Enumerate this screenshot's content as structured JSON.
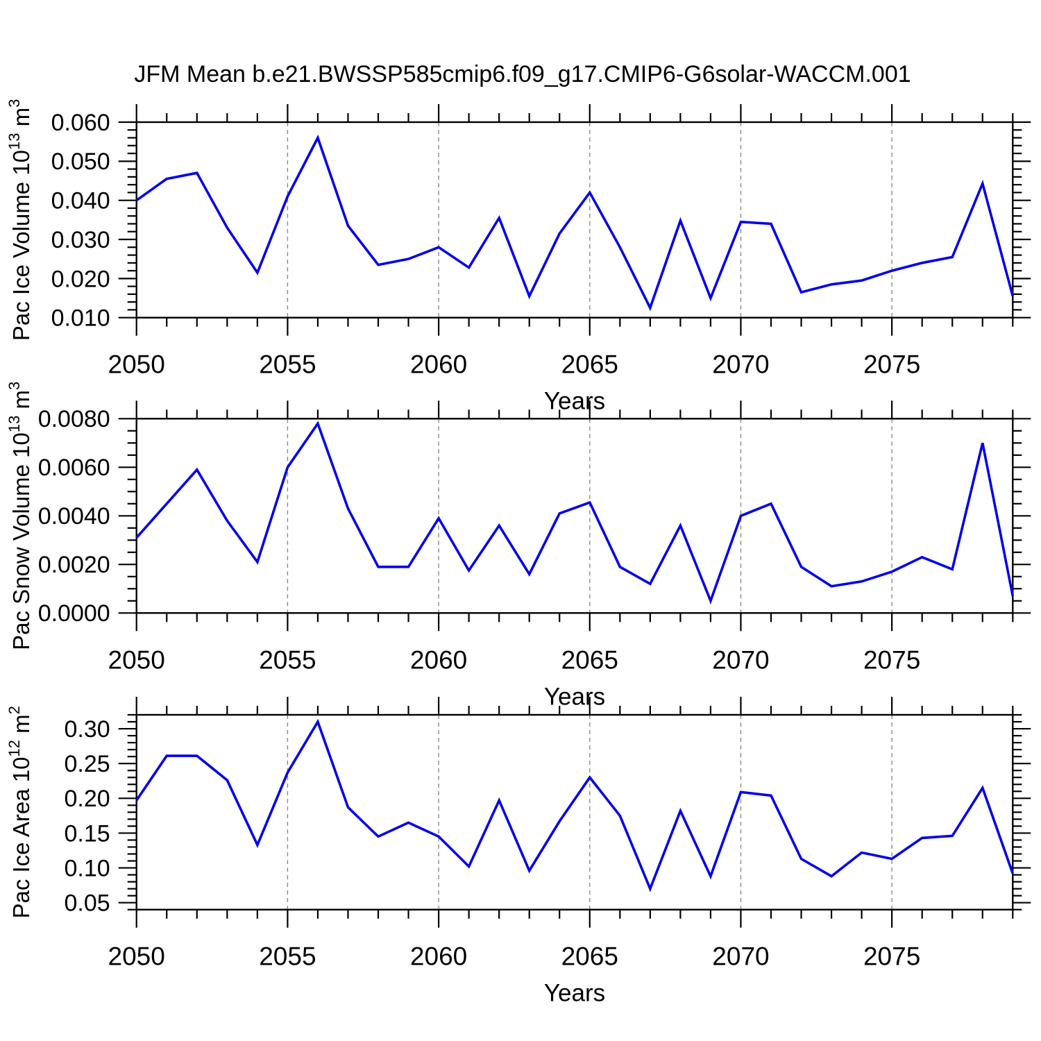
{
  "title": "JFM Mean b.e21.BWSSP585cmip6.f09_g17.CMIP6-G6solar-WACCM.001",
  "colors": {
    "line": "#0000ee",
    "frame": "#000000",
    "grid": "#8a8a8a",
    "background": "#ffffff"
  },
  "years": [
    2050,
    2051,
    2052,
    2053,
    2054,
    2055,
    2056,
    2057,
    2058,
    2059,
    2060,
    2061,
    2062,
    2063,
    2064,
    2065,
    2066,
    2067,
    2068,
    2069,
    2070,
    2071,
    2072,
    2073,
    2074,
    2075,
    2076,
    2077,
    2078,
    2079
  ],
  "xlim": [
    2050,
    2079
  ],
  "xticks": [
    2050,
    2055,
    2060,
    2065,
    2070,
    2075
  ],
  "xtick_labels": [
    "2050",
    "2055",
    "2060",
    "2065",
    "2070",
    "2075"
  ],
  "x_minor_step": 1,
  "grid_x": [
    2055,
    2060,
    2065,
    2070,
    2075
  ],
  "xlabel": "Years",
  "chart_data": [
    {
      "type": "line",
      "id": "panel-ice-volume",
      "series_name": "Pac Ice Volume",
      "ylabel_parts": {
        "base1": "Pac Ice Volume 10",
        "sup1": "13",
        "base2": " m",
        "sup2": "3"
      },
      "ylim": [
        0.01,
        0.06
      ],
      "ytick_values": [
        0.06,
        0.05,
        0.04,
        0.03,
        0.02,
        0.01
      ],
      "ytick_labels": [
        "0.060",
        "0.050",
        "0.040",
        "0.030",
        "0.020",
        "0.010"
      ],
      "y_major_step": 0.01,
      "y_minor_step": 0.002,
      "values": [
        0.04,
        0.0455,
        0.047,
        0.033,
        0.0215,
        0.041,
        0.056,
        0.0335,
        0.0235,
        0.025,
        0.028,
        0.0228,
        0.0355,
        0.0155,
        0.0315,
        0.042,
        0.028,
        0.0125,
        0.0348,
        0.015,
        0.0345,
        0.034,
        0.0165,
        0.0185,
        0.0195,
        0.022,
        0.024,
        0.0255,
        0.0443,
        0.0155
      ]
    },
    {
      "type": "line",
      "id": "panel-snow-volume",
      "series_name": "Pac Snow Volume",
      "ylabel_parts": {
        "base1": "Pac Snow Volume 10",
        "sup1": "13",
        "base2": " m",
        "sup2": "3"
      },
      "ylim": [
        0.0,
        0.008
      ],
      "ytick_values": [
        0.008,
        0.006,
        0.004,
        0.002,
        0.0
      ],
      "ytick_labels": [
        "0.0080",
        "0.0060",
        "0.0040",
        "0.0020",
        "0.0000"
      ],
      "y_major_step": 0.002,
      "y_minor_step": 0.0005,
      "values": [
        0.0031,
        0.0045,
        0.0059,
        0.0038,
        0.0021,
        0.006,
        0.0078,
        0.0043,
        0.0019,
        0.0019,
        0.0039,
        0.00175,
        0.0036,
        0.0016,
        0.0041,
        0.00455,
        0.0019,
        0.0012,
        0.0036,
        0.0005,
        0.004,
        0.0045,
        0.0019,
        0.0011,
        0.0013,
        0.0017,
        0.0023,
        0.0018,
        0.007,
        0.0007
      ]
    },
    {
      "type": "line",
      "id": "panel-ice-area",
      "series_name": "Pac Ice Area",
      "ylabel_parts": {
        "base1": "Pac Ice Area 10",
        "sup1": "12",
        "base2": " m",
        "sup2": "2"
      },
      "ylim": [
        0.04,
        0.32
      ],
      "ytick_values": [
        0.3,
        0.25,
        0.2,
        0.15,
        0.1,
        0.05
      ],
      "ytick_labels": [
        "0.30",
        "0.25",
        "0.20",
        "0.15",
        "0.10",
        "0.05"
      ],
      "y_major_step": 0.05,
      "y_minor_step": 0.01,
      "values": [
        0.197,
        0.261,
        0.261,
        0.226,
        0.133,
        0.237,
        0.31,
        0.187,
        0.145,
        0.165,
        0.145,
        0.102,
        0.197,
        0.096,
        0.167,
        0.23,
        0.175,
        0.07,
        0.182,
        0.088,
        0.209,
        0.204,
        0.113,
        0.088,
        0.122,
        0.113,
        0.143,
        0.146,
        0.215,
        0.092
      ]
    }
  ]
}
